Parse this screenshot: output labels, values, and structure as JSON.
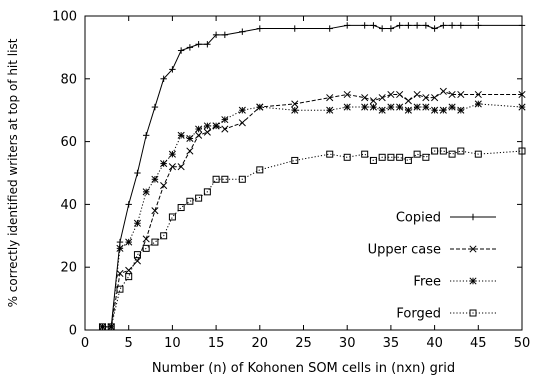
{
  "chart_data": {
    "type": "line",
    "title": "",
    "xlabel": "Number (n) of Kohonen SOM cells in (nxn) grid",
    "ylabel": "% correctly identified writers at top of hit list",
    "xlim": [
      0,
      50
    ],
    "ylim": [
      0,
      100
    ],
    "x_ticks": [
      "0",
      "5",
      "10",
      "15",
      "20",
      "25",
      "30",
      "35",
      "40",
      "45",
      "50"
    ],
    "y_ticks": [
      "0",
      "20",
      "40",
      "60",
      "80",
      "100"
    ],
    "grid": false,
    "legend_position": "bottom-right",
    "series": [
      {
        "name": "Copied",
        "marker": "plus",
        "dash": "solid",
        "points": [
          [
            2,
            1
          ],
          [
            3,
            1
          ],
          [
            4,
            28
          ],
          [
            5,
            40
          ],
          [
            6,
            50
          ],
          [
            7,
            62
          ],
          [
            8,
            71
          ],
          [
            9,
            80
          ],
          [
            10,
            83
          ],
          [
            11,
            89
          ],
          [
            12,
            90
          ],
          [
            13,
            91
          ],
          [
            14,
            91
          ],
          [
            15,
            94
          ],
          [
            16,
            94
          ],
          [
            18,
            95
          ],
          [
            20,
            96
          ],
          [
            24,
            96
          ],
          [
            28,
            96
          ],
          [
            30,
            97
          ],
          [
            32,
            97
          ],
          [
            33,
            97
          ],
          [
            34,
            96
          ],
          [
            35,
            96
          ],
          [
            36,
            97
          ],
          [
            37,
            97
          ],
          [
            38,
            97
          ],
          [
            39,
            97
          ],
          [
            40,
            96
          ],
          [
            41,
            97
          ],
          [
            42,
            97
          ],
          [
            43,
            97
          ],
          [
            45,
            97
          ],
          [
            50,
            97
          ]
        ]
      },
      {
        "name": "Upper case",
        "marker": "cross",
        "dash": "dashed",
        "points": [
          [
            2,
            1
          ],
          [
            3,
            1
          ],
          [
            4,
            18
          ],
          [
            5,
            19
          ],
          [
            6,
            22
          ],
          [
            7,
            29
          ],
          [
            8,
            38
          ],
          [
            9,
            46
          ],
          [
            10,
            52
          ],
          [
            11,
            52
          ],
          [
            12,
            57
          ],
          [
            13,
            62
          ],
          [
            14,
            63
          ],
          [
            15,
            65
          ],
          [
            16,
            64
          ],
          [
            18,
            66
          ],
          [
            20,
            71
          ],
          [
            24,
            72
          ],
          [
            28,
            74
          ],
          [
            30,
            75
          ],
          [
            32,
            74
          ],
          [
            33,
            73
          ],
          [
            34,
            74
          ],
          [
            35,
            75
          ],
          [
            36,
            75
          ],
          [
            37,
            73
          ],
          [
            38,
            75
          ],
          [
            39,
            74
          ],
          [
            40,
            74
          ],
          [
            41,
            76
          ],
          [
            42,
            75
          ],
          [
            43,
            75
          ],
          [
            45,
            75
          ],
          [
            50,
            75
          ]
        ]
      },
      {
        "name": "Free",
        "marker": "star",
        "dash": "dotted",
        "points": [
          [
            2,
            1
          ],
          [
            3,
            1
          ],
          [
            4,
            26
          ],
          [
            5,
            28
          ],
          [
            6,
            34
          ],
          [
            7,
            44
          ],
          [
            8,
            48
          ],
          [
            9,
            53
          ],
          [
            10,
            56
          ],
          [
            11,
            62
          ],
          [
            12,
            61
          ],
          [
            13,
            64
          ],
          [
            14,
            65
          ],
          [
            15,
            65
          ],
          [
            16,
            67
          ],
          [
            18,
            70
          ],
          [
            20,
            71
          ],
          [
            24,
            70
          ],
          [
            28,
            70
          ],
          [
            30,
            71
          ],
          [
            32,
            71
          ],
          [
            33,
            71
          ],
          [
            34,
            70
          ],
          [
            35,
            71
          ],
          [
            36,
            71
          ],
          [
            37,
            70
          ],
          [
            38,
            71
          ],
          [
            39,
            71
          ],
          [
            40,
            70
          ],
          [
            41,
            70
          ],
          [
            42,
            71
          ],
          [
            43,
            70
          ],
          [
            45,
            72
          ],
          [
            50,
            71
          ]
        ]
      },
      {
        "name": "Forged",
        "marker": "square",
        "dash": "dotted",
        "points": [
          [
            2,
            1
          ],
          [
            3,
            1
          ],
          [
            4,
            13
          ],
          [
            5,
            17
          ],
          [
            6,
            24
          ],
          [
            7,
            26
          ],
          [
            8,
            28
          ],
          [
            9,
            30
          ],
          [
            10,
            36
          ],
          [
            11,
            39
          ],
          [
            12,
            41
          ],
          [
            13,
            42
          ],
          [
            14,
            44
          ],
          [
            15,
            48
          ],
          [
            16,
            48
          ],
          [
            18,
            48
          ],
          [
            20,
            51
          ],
          [
            24,
            54
          ],
          [
            28,
            56
          ],
          [
            30,
            55
          ],
          [
            32,
            56
          ],
          [
            33,
            54
          ],
          [
            34,
            55
          ],
          [
            35,
            55
          ],
          [
            36,
            55
          ],
          [
            37,
            54
          ],
          [
            38,
            56
          ],
          [
            39,
            55
          ],
          [
            40,
            57
          ],
          [
            41,
            57
          ],
          [
            42,
            56
          ],
          [
            43,
            57
          ],
          [
            45,
            56
          ],
          [
            50,
            57
          ]
        ]
      }
    ]
  }
}
